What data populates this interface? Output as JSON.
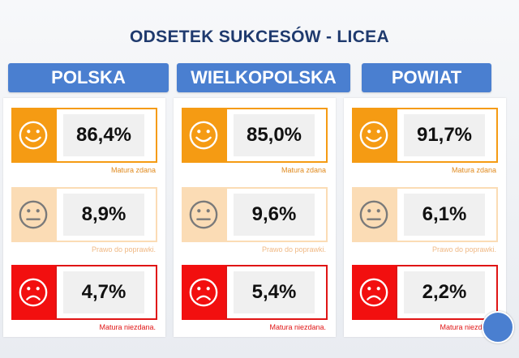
{
  "title": "ODSETEK SUKCESÓW - LICEA",
  "columns": [
    {
      "header": "POLSKA",
      "cards": [
        {
          "face": "happy-face-icon",
          "value": "86,4%",
          "caption": "Matura zdana"
        },
        {
          "face": "neutral-face-icon",
          "value": "8,9%",
          "caption": "Prawo do poprawki."
        },
        {
          "face": "sad-face-icon",
          "value": "4,7%",
          "caption": "Matura niezdana."
        }
      ]
    },
    {
      "header": "WIELKOPOLSKA",
      "cards": [
        {
          "face": "happy-face-icon",
          "value": "85,0%",
          "caption": "Matura zdana"
        },
        {
          "face": "neutral-face-icon",
          "value": "9,6%",
          "caption": "Prawo do poprawki."
        },
        {
          "face": "sad-face-icon",
          "value": "5,4%",
          "caption": "Matura niezdana."
        }
      ]
    },
    {
      "header": "POWIAT",
      "cards": [
        {
          "face": "happy-face-icon",
          "value": "91,7%",
          "caption": "Matura zdana"
        },
        {
          "face": "neutral-face-icon",
          "value": "6,1%",
          "caption": "Prawo do poprawki."
        },
        {
          "face": "sad-face-icon",
          "value": "2,2%",
          "caption": "Matura niezdana."
        }
      ]
    }
  ],
  "colors": {
    "title": "#1f3a6e",
    "header": "#4a7fd0",
    "passed": "#f59b13",
    "retake": "#fbdcb5",
    "failed": "#f20f0f"
  }
}
